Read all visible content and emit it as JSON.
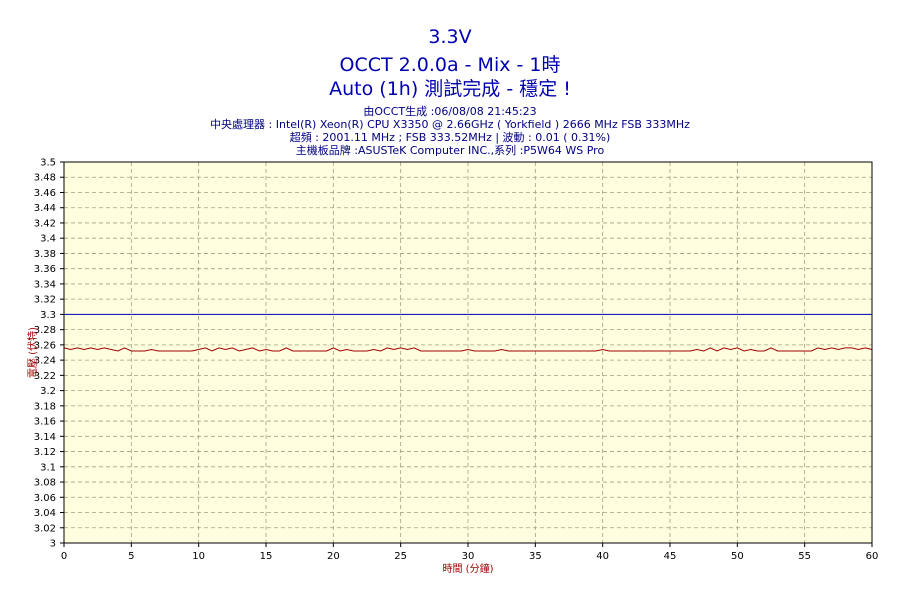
{
  "header": {
    "title_line1": "3.3V",
    "title_line2": "OCCT 2.0.0a - Mix - 1時",
    "title_line3": "Auto (1h) 測試完成 - 穩定 !",
    "info_line1": "由OCCT生成 :06/08/08 21:45:23",
    "info_line2": "中央處理器 : Intel(R) Xeon(R) CPU X3350 @ 2.66GHz ( Yorkfield ) 2666 MHz FSB 333MHz",
    "info_line3": "超頻 : 2001.11 MHz ; FSB 333.52MHz | 波動 : 0.01 ( 0.31%)",
    "info_line4": "主機板品牌 :ASUSTeK Computer INC.,系列 :P5W64 WS Pro"
  },
  "colors": {
    "title": "#0000b0",
    "plot_background": "#ffffe0",
    "grid": "#a0a080",
    "reference_line": "#0000c0",
    "voltage_line": "#a00000",
    "axis_label": "#a00000"
  },
  "chart_data": {
    "type": "line",
    "xlabel": "時間 (分鐘)",
    "ylabel": "電壓 (伏特)",
    "xlim": [
      0,
      60
    ],
    "ylim": [
      3.0,
      3.5
    ],
    "x_ticks": [
      "0",
      "5",
      "10",
      "15",
      "20",
      "25",
      "30",
      "35",
      "40",
      "45",
      "50",
      "55",
      "60"
    ],
    "y_ticks": [
      "3",
      "3.02",
      "3.04",
      "3.06",
      "3.08",
      "3.1",
      "3.12",
      "3.14",
      "3.16",
      "3.18",
      "3.2",
      "3.22",
      "3.24",
      "3.26",
      "3.28",
      "3.3",
      "3.32",
      "3.34",
      "3.36",
      "3.38",
      "3.4",
      "3.42",
      "3.44",
      "3.46",
      "3.48",
      "3.5"
    ],
    "grid": true,
    "reference_line": 3.3,
    "series": [
      {
        "x": [
          0,
          0.5,
          1,
          1.5,
          2,
          2.5,
          3,
          3.5,
          4,
          4.5,
          5,
          5.5,
          6,
          6.5,
          7,
          7.5,
          8,
          8.5,
          9,
          9.5,
          10,
          10.5,
          11,
          11.5,
          12,
          12.5,
          13,
          13.5,
          14,
          14.5,
          15,
          15.5,
          16,
          16.5,
          17,
          17.5,
          18,
          18.5,
          19,
          19.5,
          20,
          20.5,
          21,
          21.5,
          22,
          22.5,
          23,
          23.5,
          24,
          24.5,
          25,
          25.5,
          26,
          26.5,
          27,
          27.5,
          28,
          28.5,
          29,
          29.5,
          30,
          30.5,
          31,
          31.5,
          32,
          32.5,
          33,
          33.5,
          34,
          34.5,
          35,
          35.5,
          36,
          36.5,
          37,
          37.5,
          38,
          38.5,
          39,
          39.5,
          40,
          40.5,
          41,
          41.5,
          42,
          42.5,
          43,
          43.5,
          44,
          44.5,
          45,
          45.5,
          46,
          46.5,
          47,
          47.5,
          48,
          48.5,
          49,
          49.5,
          50,
          50.5,
          51,
          51.5,
          52,
          52.5,
          53,
          53.5,
          54,
          54.5,
          55,
          55.5,
          56,
          56.5,
          57,
          57.5,
          58,
          58.5,
          59,
          59.5,
          60
        ],
        "values": [
          3.256,
          3.254,
          3.256,
          3.254,
          3.256,
          3.254,
          3.256,
          3.254,
          3.252,
          3.256,
          3.252,
          3.252,
          3.252,
          3.254,
          3.252,
          3.252,
          3.252,
          3.252,
          3.252,
          3.252,
          3.254,
          3.256,
          3.252,
          3.256,
          3.254,
          3.256,
          3.252,
          3.254,
          3.256,
          3.252,
          3.254,
          3.252,
          3.252,
          3.256,
          3.252,
          3.252,
          3.252,
          3.252,
          3.252,
          3.252,
          3.256,
          3.252,
          3.254,
          3.252,
          3.252,
          3.252,
          3.254,
          3.252,
          3.256,
          3.254,
          3.256,
          3.254,
          3.256,
          3.252,
          3.252,
          3.252,
          3.252,
          3.252,
          3.252,
          3.252,
          3.254,
          3.252,
          3.252,
          3.252,
          3.252,
          3.254,
          3.252,
          3.252,
          3.252,
          3.252,
          3.252,
          3.252,
          3.252,
          3.252,
          3.252,
          3.252,
          3.252,
          3.252,
          3.252,
          3.252,
          3.254,
          3.252,
          3.252,
          3.252,
          3.252,
          3.252,
          3.252,
          3.252,
          3.252,
          3.252,
          3.252,
          3.252,
          3.252,
          3.252,
          3.254,
          3.252,
          3.256,
          3.252,
          3.256,
          3.254,
          3.256,
          3.252,
          3.254,
          3.252,
          3.252,
          3.256,
          3.252,
          3.252,
          3.252,
          3.252,
          3.252,
          3.252,
          3.256,
          3.254,
          3.256,
          3.254,
          3.256,
          3.256,
          3.254,
          3.256,
          3.254
        ]
      }
    ]
  }
}
